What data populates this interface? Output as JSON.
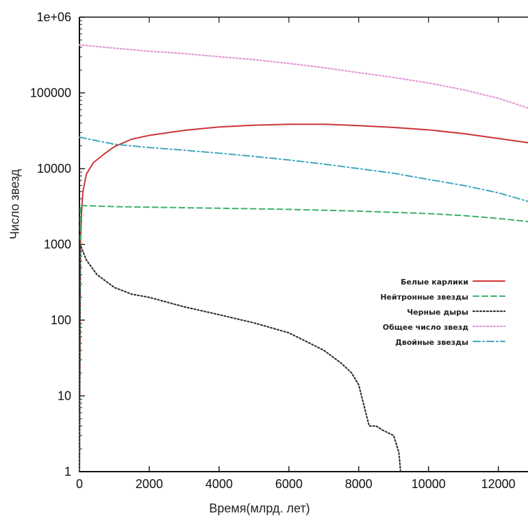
{
  "chart_data": {
    "type": "line",
    "title": "",
    "xlabel": "Время(млрд. лет)",
    "ylabel": "Число звезд",
    "xlim": [
      0,
      12850
    ],
    "ylim": [
      1,
      1000000
    ],
    "yscale": "log",
    "grid": false,
    "legend_position": "center-right",
    "x_ticks": [
      0,
      2000,
      4000,
      6000,
      8000,
      10000,
      12000
    ],
    "x_tick_labels": [
      "0",
      "2000",
      "4000",
      "6000",
      "8000",
      "10000",
      "12000"
    ],
    "y_ticks": [
      1,
      10,
      100,
      1000,
      10000,
      100000,
      1000000
    ],
    "y_tick_labels": [
      "1",
      "10",
      "100",
      "1000",
      "10000",
      "100000",
      "1e+06"
    ],
    "series": [
      {
        "name": "Белые карлики",
        "color": "#cc3333",
        "dash": "solid",
        "x": [
          0,
          30,
          60,
          100,
          200,
          400,
          700,
          1000,
          1500,
          2000,
          3000,
          4000,
          5000,
          6000,
          7000,
          8000,
          9000,
          10000,
          11000,
          12000,
          12850
        ],
        "y": [
          1,
          1000,
          2600,
          5000,
          8500,
          12000,
          15500,
          19500,
          24500,
          27500,
          32000,
          35500,
          37500,
          38500,
          38500,
          37000,
          35000,
          32500,
          29000,
          25000,
          22000
        ]
      },
      {
        "name": "Нейтронные звезды",
        "color": "#3bb06a",
        "dash": "dashed",
        "x": [
          0,
          30,
          100,
          1000,
          2000,
          4000,
          6000,
          8000,
          10000,
          11000,
          12000,
          12850
        ],
        "y": [
          1,
          3300,
          3250,
          3150,
          3100,
          3000,
          2900,
          2750,
          2550,
          2400,
          2200,
          2000
        ]
      },
      {
        "name": "Черные дыры",
        "color": "#333333",
        "dash": "dotted",
        "x": [
          0,
          20,
          200,
          500,
          1000,
          1500,
          2000,
          3000,
          4000,
          5000,
          6000,
          7000,
          7500,
          7800,
          8000,
          8300,
          8500,
          8700,
          9000,
          9150,
          9200
        ],
        "y": [
          1,
          1000,
          620,
          400,
          270,
          220,
          200,
          150,
          118,
          92,
          68,
          40,
          27,
          20,
          14,
          4,
          4,
          3.5,
          3,
          1.8,
          1
        ]
      },
      {
        "name": "Общее число звезд",
        "color": "#e39ad8",
        "dash": "dotted",
        "x": [
          0,
          1000,
          2000,
          3000,
          4000,
          5000,
          6000,
          7000,
          8000,
          9000,
          10000,
          11000,
          12000,
          12850
        ],
        "y": [
          430000,
          390000,
          355000,
          330000,
          300000,
          275000,
          245000,
          215000,
          185000,
          160000,
          135000,
          110000,
          85000,
          63000
        ]
      },
      {
        "name": "Двойные звезды",
        "color": "#3fa7ba",
        "dash": "dashdot",
        "x": [
          0,
          1000,
          2000,
          3000,
          4000,
          5000,
          6000,
          7000,
          8000,
          9000,
          10000,
          11000,
          12000,
          12850
        ],
        "y": [
          26000,
          21000,
          19000,
          17500,
          16000,
          14500,
          13000,
          11500,
          10000,
          8700,
          7200,
          6000,
          4800,
          3700
        ]
      }
    ]
  }
}
